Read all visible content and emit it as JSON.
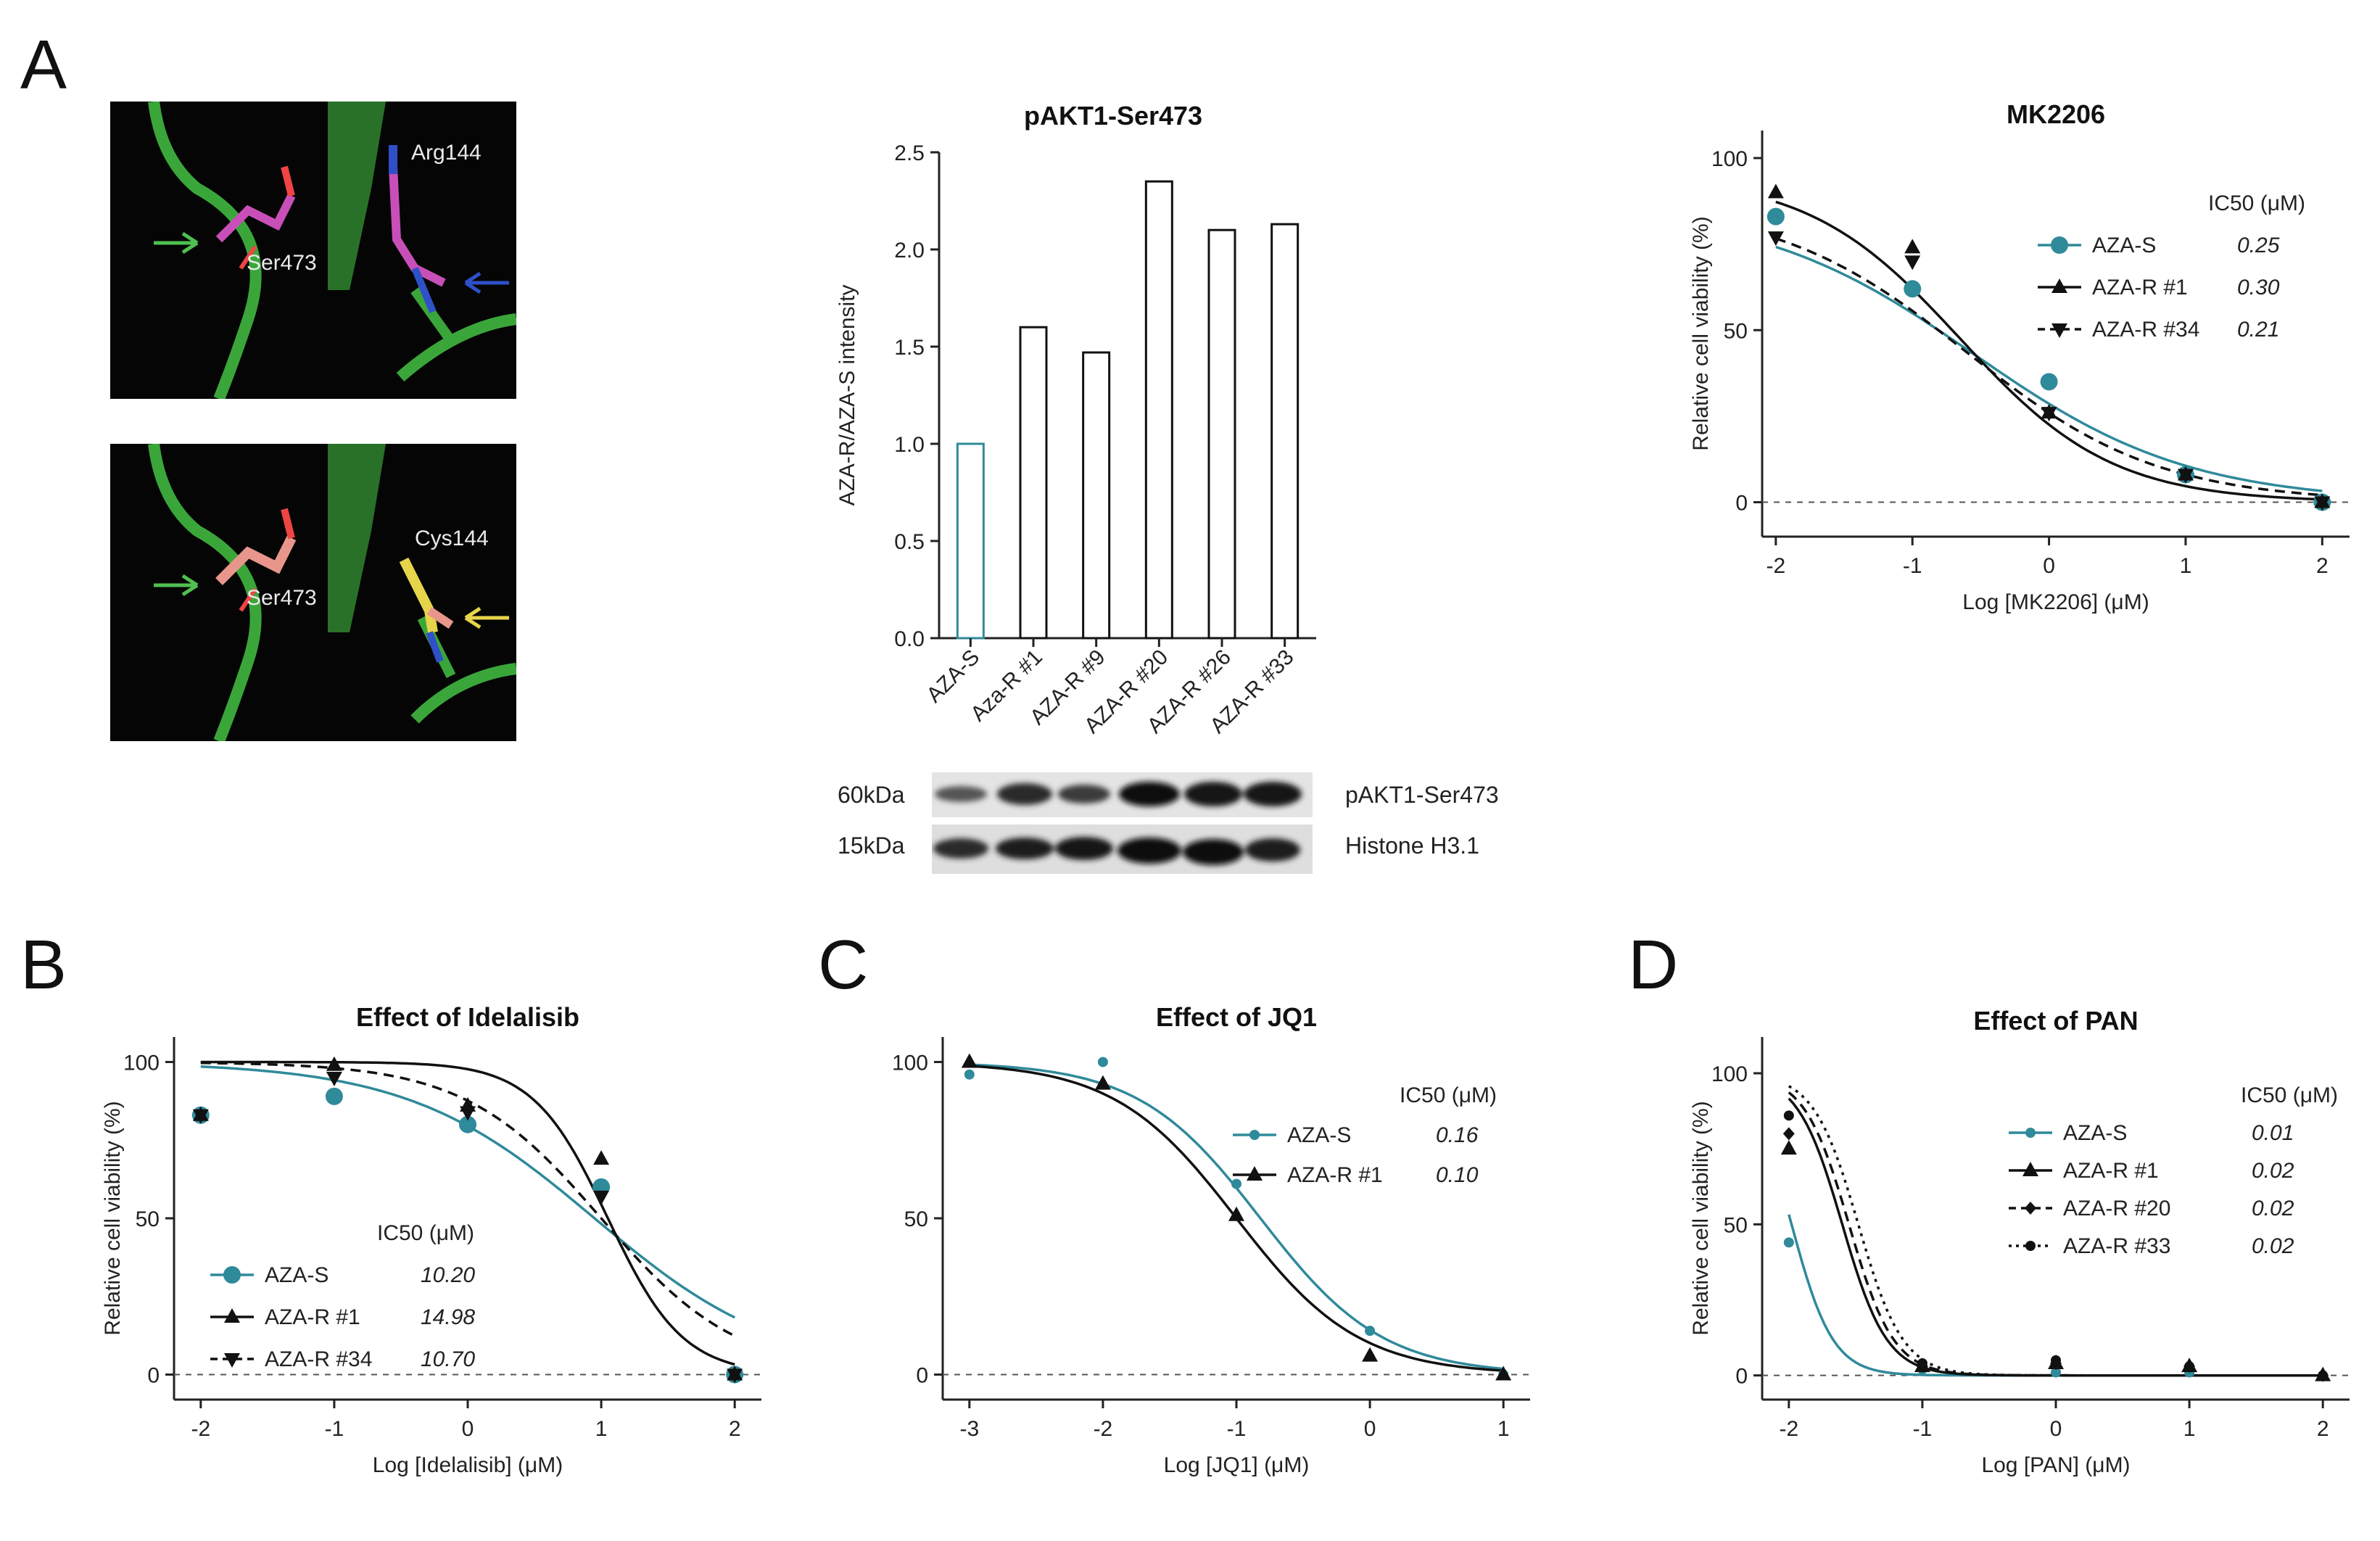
{
  "figure": {
    "panel_letters": [
      "A",
      "B",
      "C",
      "D"
    ]
  },
  "colors": {
    "teal": "#2f8a9a",
    "black": "#111111",
    "protein_green": "#3aa63a",
    "magenta_residue": "#c84fb8",
    "salmon_residue": "#e8968c",
    "yellow_residue": "#e6d44a"
  },
  "structures": {
    "top": {
      "residue_a": "Ser473",
      "residue_b": "Arg144",
      "arrow_colors": [
        "green",
        "blue"
      ]
    },
    "bottom": {
      "residue_a": "Ser473",
      "residue_b": "Cys144",
      "arrow_colors": [
        "green",
        "yellow"
      ]
    }
  },
  "western_blot": {
    "rows": [
      {
        "mw": "60kDa",
        "protein": "pAKT1-Ser473"
      },
      {
        "mw": "15kDa",
        "protein": "Histone H3.1"
      }
    ]
  },
  "chart_data": [
    {
      "id": "pakt1",
      "type": "bar",
      "title": "pAKT1-Ser473",
      "xlabel": "",
      "ylabel": "AZA-R/AZA-S intensity",
      "ylim": [
        0,
        2.5
      ],
      "yticks": [
        "0.0",
        "0.5",
        "1.0",
        "1.5",
        "2.0",
        "2.5"
      ],
      "categories": [
        "AZA-S",
        "Aza-R #1",
        "AZA-R #9",
        "AZA-R #20",
        "AZA-R #26",
        "AZA-R #33"
      ],
      "values": [
        1.0,
        1.6,
        1.47,
        2.35,
        2.1,
        2.13
      ],
      "bar_colors": [
        "#2f8a9a",
        "#111111",
        "#111111",
        "#111111",
        "#111111",
        "#111111"
      ]
    },
    {
      "id": "mk2206",
      "type": "line",
      "title": "MK2206",
      "xlabel": "Log [MK2206] (μM)",
      "ylabel": "Relative cell viability (%)",
      "xlim": [
        -2.1,
        2.2
      ],
      "ylim": [
        -10,
        108
      ],
      "xticks": [
        "-2",
        "-1",
        "0",
        "1",
        "2"
      ],
      "yticks": [
        "0",
        "50",
        "100"
      ],
      "legend_header": "IC50 (μM)",
      "legend_position": "top-right",
      "series": [
        {
          "name": "AZA-S",
          "ic50": "0.25",
          "color": "#2f8a9a",
          "marker": "circle-large",
          "dash": "solid",
          "x": [
            -2,
            -1,
            0,
            1,
            2
          ],
          "y": [
            83,
            62,
            35,
            8,
            0
          ]
        },
        {
          "name": "AZA-R #1",
          "ic50": "0.30",
          "color": "#111111",
          "marker": "triangle-up",
          "dash": "solid",
          "x": [
            -2,
            -1,
            0,
            1,
            2
          ],
          "y": [
            90,
            74,
            26,
            8,
            0
          ]
        },
        {
          "name": "AZA-R #34",
          "ic50": "0.21",
          "color": "#111111",
          "marker": "triangle-down",
          "dash": "dashed",
          "x": [
            -2,
            -1,
            0,
            1,
            2
          ],
          "y": [
            77,
            70,
            26,
            8,
            0
          ]
        }
      ]
    },
    {
      "id": "idelalisib",
      "type": "line",
      "title": "Effect of Idelalisib",
      "xlabel": "Log [Idelalisib] (μM)",
      "ylabel": "Relative cell viability (%)",
      "xlim": [
        -2.2,
        2.2
      ],
      "ylim": [
        -8,
        108
      ],
      "xticks": [
        "-2",
        "-1",
        "0",
        "1",
        "2"
      ],
      "yticks": [
        "0",
        "50",
        "100"
      ],
      "legend_header": "IC50 (μM)",
      "legend_position": "bottom-left",
      "series": [
        {
          "name": "AZA-S",
          "ic50": "10.20",
          "color": "#2f8a9a",
          "marker": "circle-large",
          "dash": "solid",
          "x": [
            -2,
            -1,
            0,
            1,
            2
          ],
          "y": [
            83,
            89,
            80,
            60,
            0
          ]
        },
        {
          "name": "AZA-R #1",
          "ic50": "14.98",
          "color": "#111111",
          "marker": "triangle-up",
          "dash": "solid",
          "x": [
            -2,
            -1,
            0,
            1,
            2
          ],
          "y": [
            83,
            99,
            86,
            69,
            0
          ]
        },
        {
          "name": "AZA-R #34",
          "ic50": "10.70",
          "color": "#111111",
          "marker": "triangle-down",
          "dash": "dashed",
          "x": [
            -2,
            -1,
            0,
            1,
            2
          ],
          "y": [
            83,
            95,
            84,
            57,
            0
          ]
        }
      ]
    },
    {
      "id": "jq1",
      "type": "line",
      "title": "Effect of JQ1",
      "xlabel": "Log [JQ1] (μM)",
      "ylabel": "",
      "xlim": [
        -3.2,
        1.2
      ],
      "ylim": [
        -8,
        108
      ],
      "xticks": [
        "-3",
        "-2",
        "-1",
        "0",
        "1"
      ],
      "yticks": [
        "0",
        "50",
        "100"
      ],
      "legend_header": "IC50 (μM)",
      "legend_position": "top-right",
      "series": [
        {
          "name": "AZA-S",
          "ic50": "0.16",
          "color": "#2f8a9a",
          "marker": "circle-small",
          "dash": "solid",
          "x": [
            -3,
            -2,
            -1,
            0,
            1
          ],
          "y": [
            96,
            100,
            61,
            14,
            0
          ]
        },
        {
          "name": "AZA-R #1",
          "ic50": "0.10",
          "color": "#111111",
          "marker": "triangle-up",
          "dash": "solid",
          "x": [
            -3,
            -2,
            -1,
            0,
            1
          ],
          "y": [
            100,
            93,
            51,
            6,
            0
          ]
        }
      ]
    },
    {
      "id": "pan",
      "type": "line",
      "title": "Effect of PAN",
      "xlabel": "Log [PAN] (μM)",
      "ylabel": "Relative cell viability (%)",
      "xlim": [
        -2.2,
        2.2
      ],
      "ylim": [
        -8,
        112
      ],
      "xticks": [
        "-2",
        "-1",
        "0",
        "1",
        "2"
      ],
      "yticks": [
        "0",
        "50",
        "100"
      ],
      "legend_header": "IC50 (μM)",
      "legend_position": "top-right",
      "series": [
        {
          "name": "AZA-S",
          "ic50": "0.01",
          "color": "#2f8a9a",
          "marker": "circle-small",
          "dash": "solid",
          "x": [
            -2,
            -1,
            0,
            1,
            2
          ],
          "y": [
            44,
            2,
            1,
            1,
            0
          ]
        },
        {
          "name": "AZA-R #1",
          "ic50": "0.02",
          "color": "#111111",
          "marker": "triangle-up",
          "dash": "solid",
          "x": [
            -2,
            -1,
            0,
            1,
            2
          ],
          "y": [
            75,
            3,
            4,
            3,
            0
          ]
        },
        {
          "name": "AZA-R #20",
          "ic50": "0.02",
          "color": "#111111",
          "marker": "diamond",
          "dash": "dashed",
          "x": [
            -2,
            -1,
            0,
            1,
            2
          ],
          "y": [
            80,
            3,
            4,
            3,
            0
          ]
        },
        {
          "name": "AZA-R #33",
          "ic50": "0.02",
          "color": "#111111",
          "marker": "circle-small",
          "dash": "dotted",
          "x": [
            -2,
            -1,
            0,
            1,
            2
          ],
          "y": [
            86,
            4,
            5,
            3,
            0
          ]
        }
      ]
    }
  ]
}
